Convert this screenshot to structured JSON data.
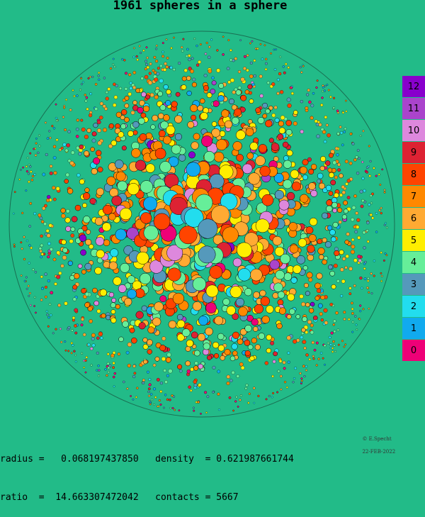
{
  "title": "1961 spheres in a sphere",
  "diagram": {
    "sphere_count": 1961,
    "colors": {
      "background": "#22bb88",
      "outline": "#000000",
      "boundary": "#1a6e52"
    }
  },
  "legend": [
    {
      "label": "12",
      "color": "#8800cc"
    },
    {
      "label": "11",
      "color": "#aa44cc"
    },
    {
      "label": "10",
      "color": "#dd88dd"
    },
    {
      "label": "9",
      "color": "#dd2233"
    },
    {
      "label": "8",
      "color": "#ff4400"
    },
    {
      "label": "7",
      "color": "#ff8800"
    },
    {
      "label": "6",
      "color": "#ffaa33"
    },
    {
      "label": "5",
      "color": "#ffee00"
    },
    {
      "label": "4",
      "color": "#66ee99"
    },
    {
      "label": "3",
      "color": "#5599bb"
    },
    {
      "label": "2",
      "color": "#22ddee"
    },
    {
      "label": "1",
      "color": "#11aaee"
    },
    {
      "label": "0",
      "color": "#ee0077"
    }
  ],
  "stats": {
    "line1": "radius =   0.068197437850   density  = 0.621987661744",
    "line2": "ratio  =  14.663307472042   contacts = 5667"
  },
  "credit": {
    "author": "© E.Specht",
    "date": "22-FEB-2022"
  }
}
